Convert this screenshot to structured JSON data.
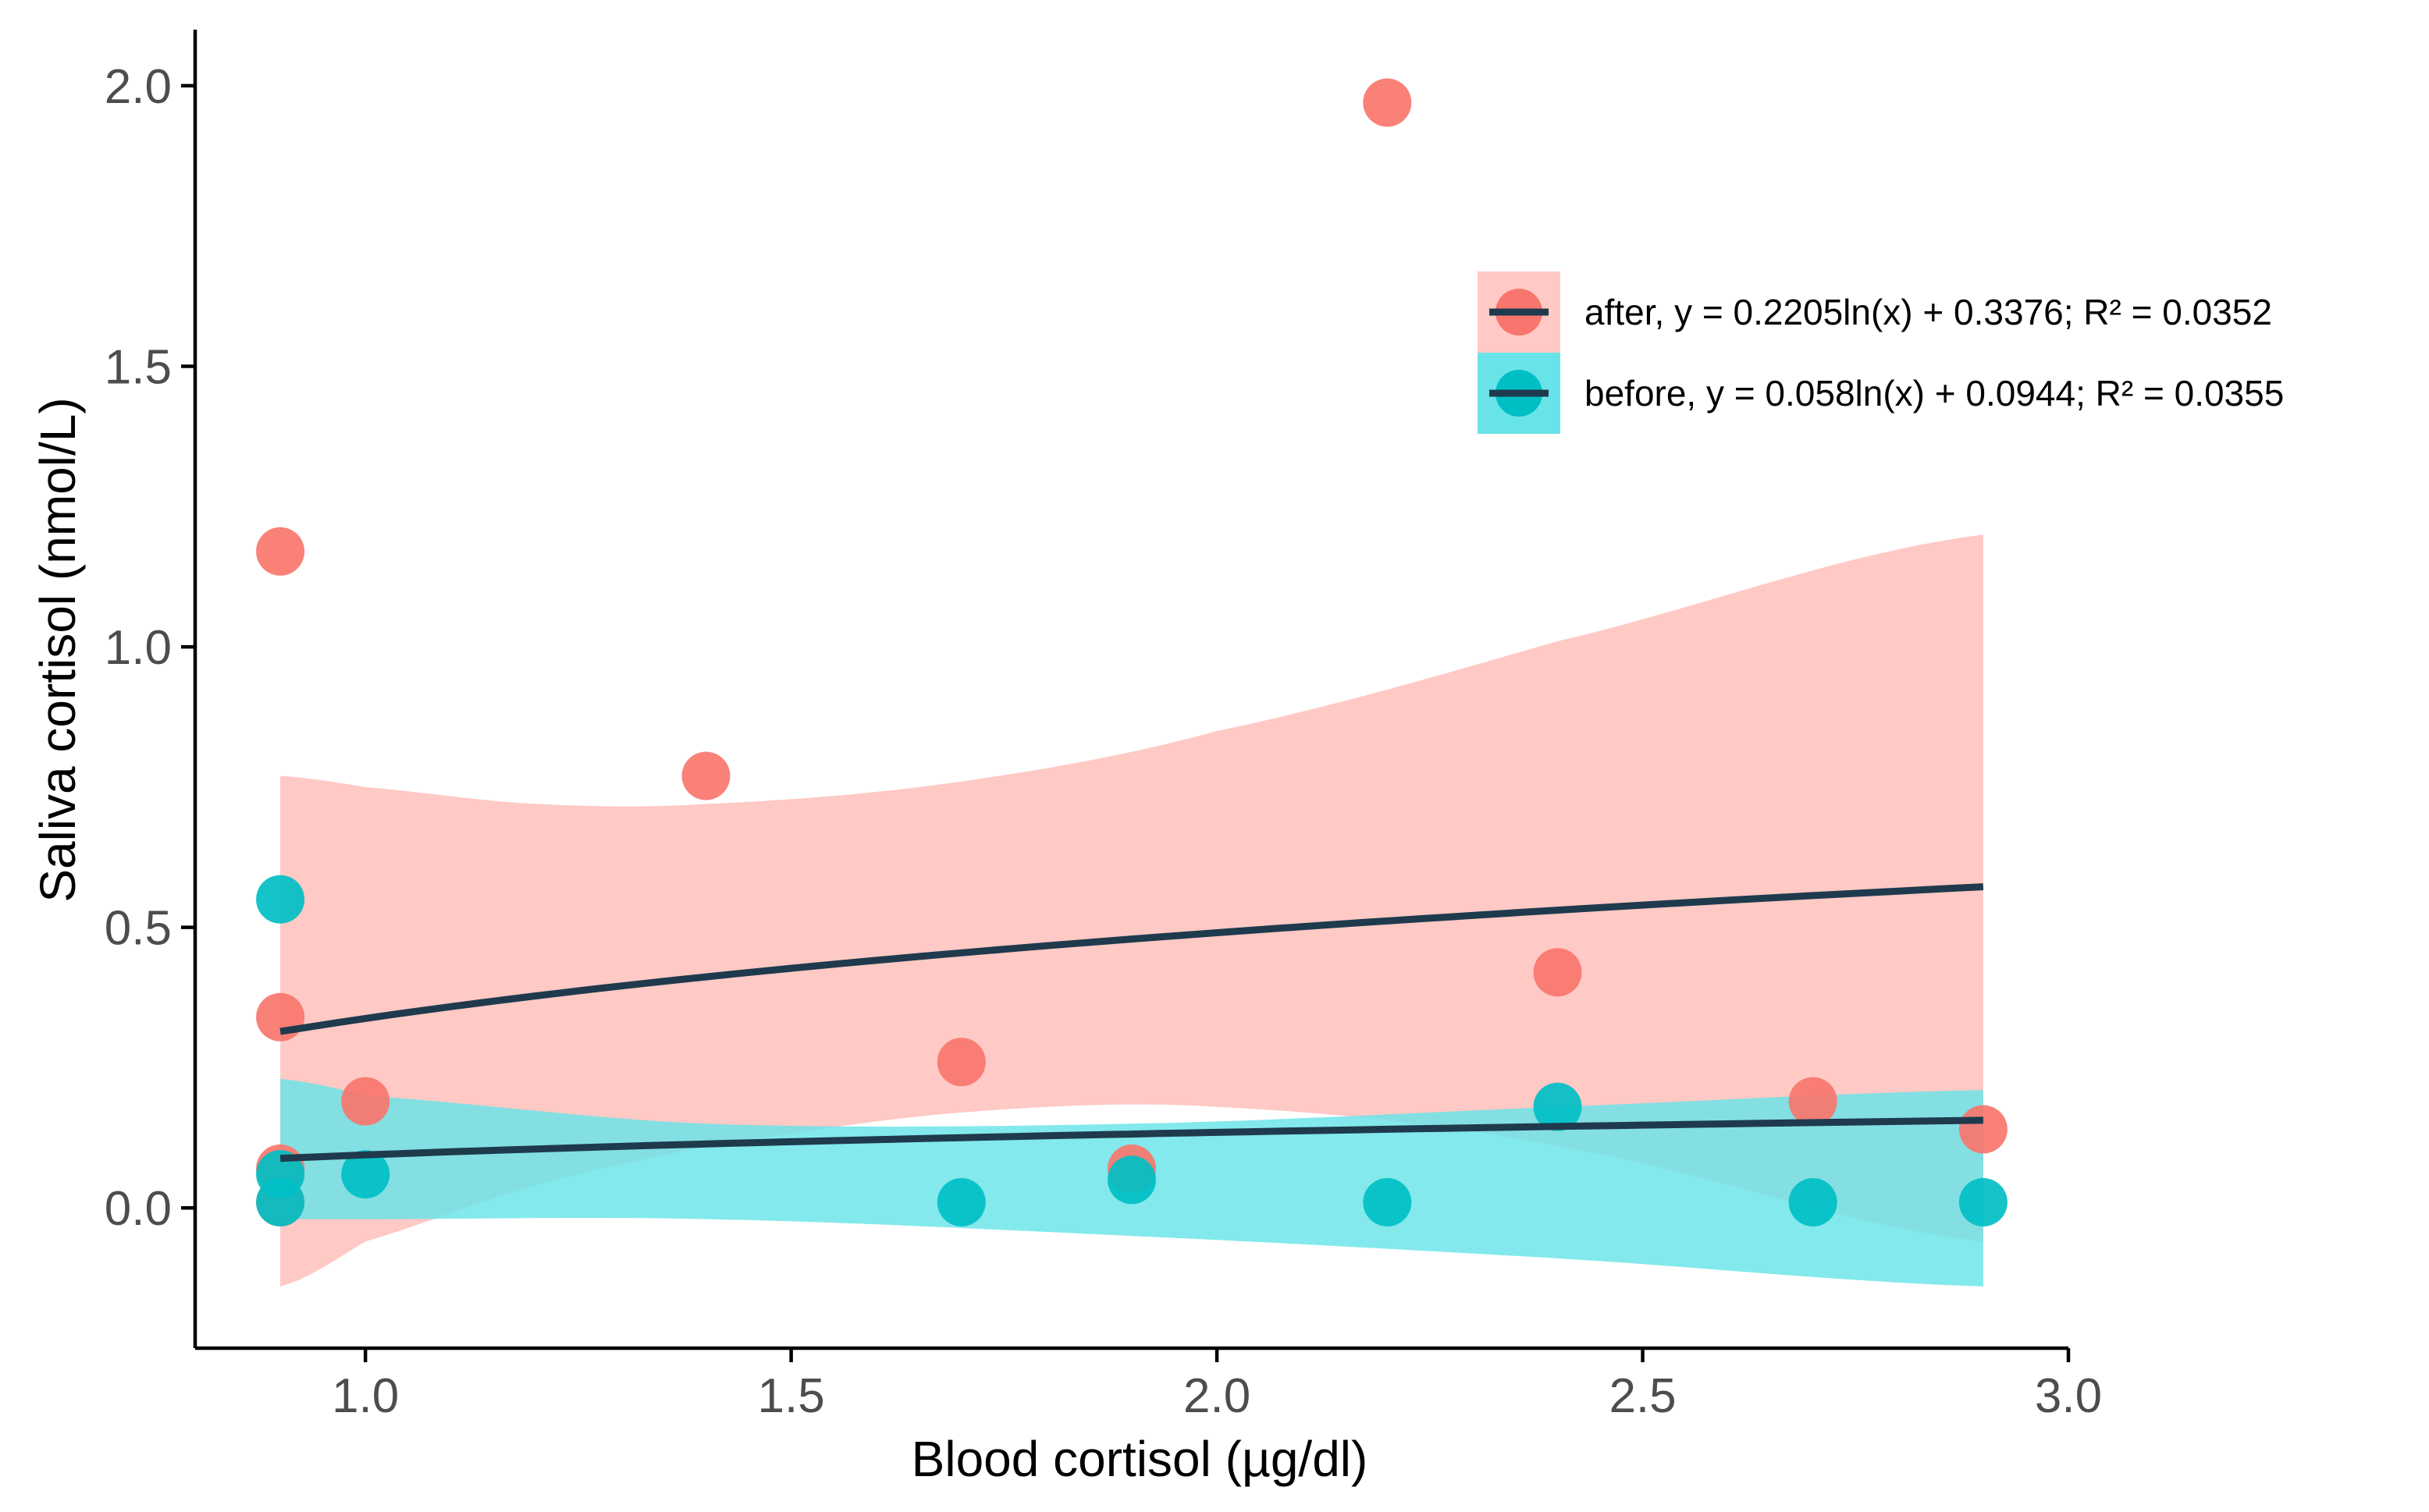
{
  "chart_data": {
    "type": "scatter",
    "title": "",
    "xlabel": "Blood cortisol (µg/dl)",
    "ylabel": "Saliva cortisol (nmol/L)",
    "xlim": [
      0.8,
      3.0
    ],
    "ylim": [
      -0.25,
      2.1
    ],
    "x_ticks": [
      1.0,
      1.5,
      2.0,
      2.5,
      3.0
    ],
    "x_tick_labels": [
      "1.0",
      "1.5",
      "2.0",
      "2.5",
      "3.0"
    ],
    "y_ticks": [
      0.0,
      0.5,
      1.0,
      1.5,
      2.0
    ],
    "y_tick_labels": [
      "0.0",
      "0.5",
      "1.0",
      "1.5",
      "2.0"
    ],
    "grid": false,
    "legend_position": "top-right",
    "series": [
      {
        "name": "after",
        "legend_label": "after, y = 0.2205ln(x) + 0.3376; R² = 0.0352",
        "color": "#f8766d",
        "band_color": "#ffc9c5",
        "points": [
          {
            "x": 0.9,
            "y": 1.17
          },
          {
            "x": 0.9,
            "y": 0.34
          },
          {
            "x": 0.9,
            "y": 0.07
          },
          {
            "x": 0.9,
            "y": 0.01
          },
          {
            "x": 1.0,
            "y": 0.19
          },
          {
            "x": 1.4,
            "y": 0.77
          },
          {
            "x": 1.7,
            "y": 0.26
          },
          {
            "x": 1.9,
            "y": 0.07
          },
          {
            "x": 2.2,
            "y": 1.97
          },
          {
            "x": 2.4,
            "y": 0.42
          },
          {
            "x": 2.7,
            "y": 0.19
          },
          {
            "x": 2.9,
            "y": 0.14
          }
        ],
        "fit": {
          "a": 0.2205,
          "b": 0.3376,
          "x_range": [
            0.9,
            2.9
          ]
        },
        "band": {
          "x": [
            0.9,
            1.0,
            1.2,
            1.4,
            1.7,
            2.0,
            2.4,
            2.9
          ],
          "upper": [
            0.77,
            0.75,
            0.72,
            0.72,
            0.76,
            0.85,
            1.01,
            1.2
          ],
          "lower": [
            -0.14,
            -0.06,
            0.04,
            0.11,
            0.17,
            0.18,
            0.11,
            -0.06
          ]
        }
      },
      {
        "name": "before",
        "legend_label": "before, y = 0.058ln(x) + 0.0944; R² = 0.0355",
        "color": "#00bfc4",
        "band_color": "#68e4e8",
        "points": [
          {
            "x": 0.9,
            "y": 0.55
          },
          {
            "x": 0.9,
            "y": 0.06
          },
          {
            "x": 0.9,
            "y": 0.01
          },
          {
            "x": 1.0,
            "y": 0.06
          },
          {
            "x": 1.7,
            "y": 0.01
          },
          {
            "x": 1.9,
            "y": 0.05
          },
          {
            "x": 2.2,
            "y": 0.01
          },
          {
            "x": 2.4,
            "y": 0.18
          },
          {
            "x": 2.7,
            "y": 0.01
          },
          {
            "x": 2.9,
            "y": 0.01
          }
        ],
        "fit": {
          "a": 0.058,
          "b": 0.0944,
          "x_range": [
            0.9,
            2.9
          ]
        },
        "band": {
          "x": [
            0.9,
            1.0,
            1.4,
            1.9,
            2.4,
            2.9
          ],
          "upper": [
            0.23,
            0.2,
            0.15,
            0.15,
            0.18,
            0.21
          ],
          "lower": [
            -0.02,
            -0.02,
            -0.02,
            -0.05,
            -0.09,
            -0.14
          ]
        }
      }
    ],
    "fit_line_color": "#1f3a4d"
  }
}
